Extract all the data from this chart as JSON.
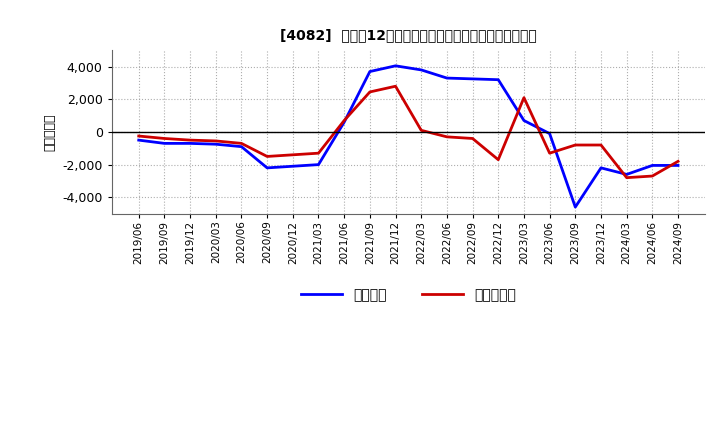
{
  "title": "[4082]  利益だ12か月移動合計の対前年同期増減額の推移",
  "ylabel": "（百万円）",
  "background_color": "#ffffff",
  "plot_bg_color": "#ffffff",
  "grid_color": "#999999",
  "x_labels": [
    "2019/06",
    "2019/09",
    "2019/12",
    "2020/03",
    "2020/06",
    "2020/09",
    "2020/12",
    "2021/03",
    "2021/06",
    "2021/09",
    "2021/12",
    "2022/03",
    "2022/06",
    "2022/09",
    "2022/12",
    "2023/03",
    "2023/06",
    "2023/09",
    "2023/12",
    "2024/03",
    "2024/06",
    "2024/09"
  ],
  "keijo_rieki": [
    -500,
    -700,
    -700,
    -750,
    -900,
    -2200,
    -2100,
    -2000,
    600,
    3700,
    4050,
    3800,
    3300,
    3250,
    3200,
    700,
    -100,
    -4600,
    -2200,
    -2600,
    -2050,
    -2050
  ],
  "toki_junn_rieki": [
    -250,
    -400,
    -500,
    -550,
    -700,
    -1500,
    -1400,
    -1300,
    700,
    2450,
    2800,
    100,
    -300,
    -400,
    -1700,
    2100,
    -1300,
    -800,
    -800,
    -2800,
    -2700,
    -1800
  ],
  "line_color_blue": "#0000ff",
  "line_color_red": "#cc0000",
  "ylim": [
    -5000,
    5000
  ],
  "yticks": [
    -4000,
    -2000,
    0,
    2000,
    4000
  ],
  "legend_label_blue": "経常利益",
  "legend_label_red": "当期純利益"
}
